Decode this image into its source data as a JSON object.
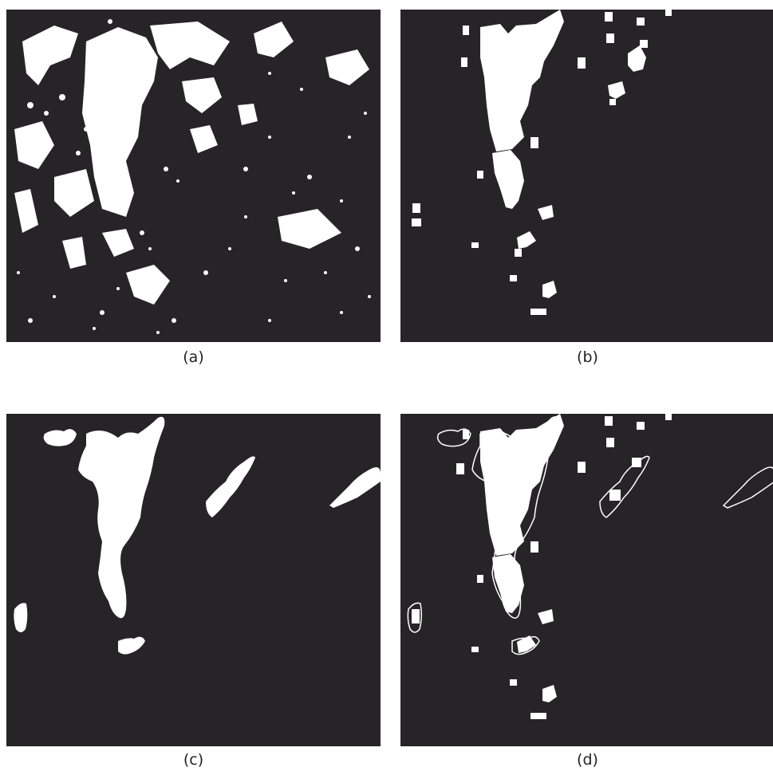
{
  "figure": {
    "panels": [
      {
        "id": "a",
        "caption": "(a)"
      },
      {
        "id": "b",
        "caption": "(b)"
      },
      {
        "id": "c",
        "caption": "(c)"
      },
      {
        "id": "d",
        "caption": "(d)"
      }
    ],
    "colors": {
      "background": "#262426",
      "foreground": "#ffffff",
      "page": "#ffffff"
    }
  }
}
